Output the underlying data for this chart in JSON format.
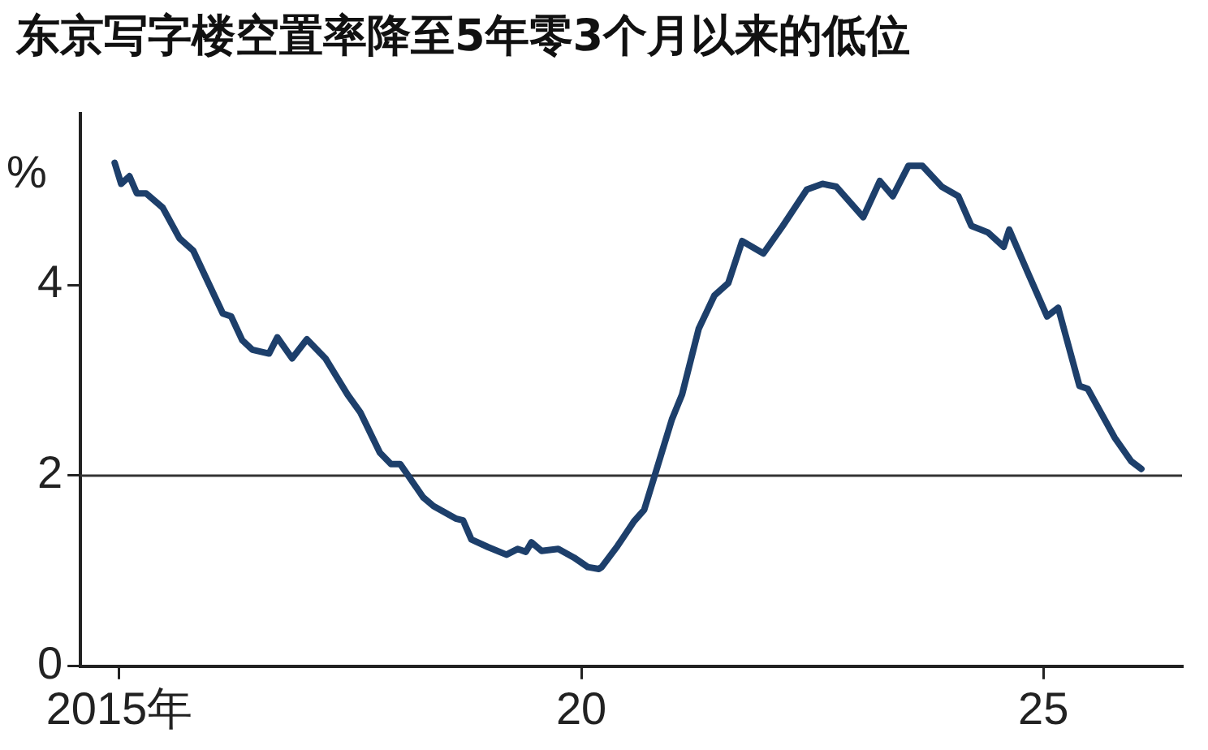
{
  "chart_data": {
    "type": "line",
    "title": "东京写字楼空置率降至5年零3个月以来的低位",
    "ylabel": "%",
    "x": [
      2014.95,
      2015.02,
      2015.11,
      2015.19,
      2015.29,
      2015.47,
      2015.65,
      2015.8,
      2016.12,
      2016.21,
      2016.33,
      2016.44,
      2016.62,
      2016.71,
      2016.87,
      2017.03,
      2017.23,
      2017.47,
      2017.61,
      2017.82,
      2017.94,
      2018.04,
      2018.29,
      2018.4,
      2018.64,
      2018.72,
      2018.81,
      2018.99,
      2019.19,
      2019.31,
      2019.4,
      2019.46,
      2019.57,
      2019.75,
      2019.92,
      2020.07,
      2020.19,
      2020.22,
      2020.39,
      2020.57,
      2020.68,
      2020.8,
      2020.98,
      2021.09,
      2021.27,
      2021.44,
      2021.59,
      2021.74,
      2021.97,
      2022.18,
      2022.44,
      2022.61,
      2022.76,
      2023.05,
      2023.23,
      2023.37,
      2023.54,
      2023.69,
      2023.9,
      2024.08,
      2024.22,
      2024.4,
      2024.57,
      2024.63,
      2024.84,
      2025.04,
      2025.16,
      2025.39,
      2025.48,
      2025.77,
      2025.95,
      2026.06
    ],
    "series": [
      {
        "color": "#1d3f6b",
        "values": [
          5.28,
          5.06,
          5.14,
          4.96,
          4.96,
          4.81,
          4.49,
          4.36,
          3.7,
          3.67,
          3.42,
          3.32,
          3.28,
          3.45,
          3.23,
          3.43,
          3.23,
          2.85,
          2.66,
          2.24,
          2.12,
          2.12,
          1.77,
          1.68,
          1.55,
          1.53,
          1.33,
          1.25,
          1.17,
          1.23,
          1.2,
          1.3,
          1.21,
          1.23,
          1.14,
          1.04,
          1.02,
          1.04,
          1.26,
          1.52,
          1.64,
          2.02,
          2.59,
          2.85,
          3.54,
          3.89,
          4.02,
          4.46,
          4.33,
          4.62,
          5.0,
          5.06,
          5.03,
          4.71,
          5.09,
          4.93,
          5.25,
          5.25,
          5.03,
          4.93,
          4.62,
          4.55,
          4.4,
          4.58,
          4.11,
          3.67,
          3.76,
          2.94,
          2.91,
          2.4,
          2.15,
          2.07
        ]
      }
    ],
    "xlim": [
      2014.58,
      2026.5
    ],
    "xticks": [
      {
        "value": 2015,
        "label": "2015年"
      },
      {
        "value": 2020,
        "label": "20"
      },
      {
        "value": 2025,
        "label": "25"
      }
    ],
    "ylim": [
      0,
      5.8
    ],
    "yticks": [
      0,
      2,
      4
    ],
    "ref_lines": [
      {
        "axis": "y",
        "value": 2,
        "color": "#333333"
      }
    ],
    "grid": false,
    "legend": false
  }
}
